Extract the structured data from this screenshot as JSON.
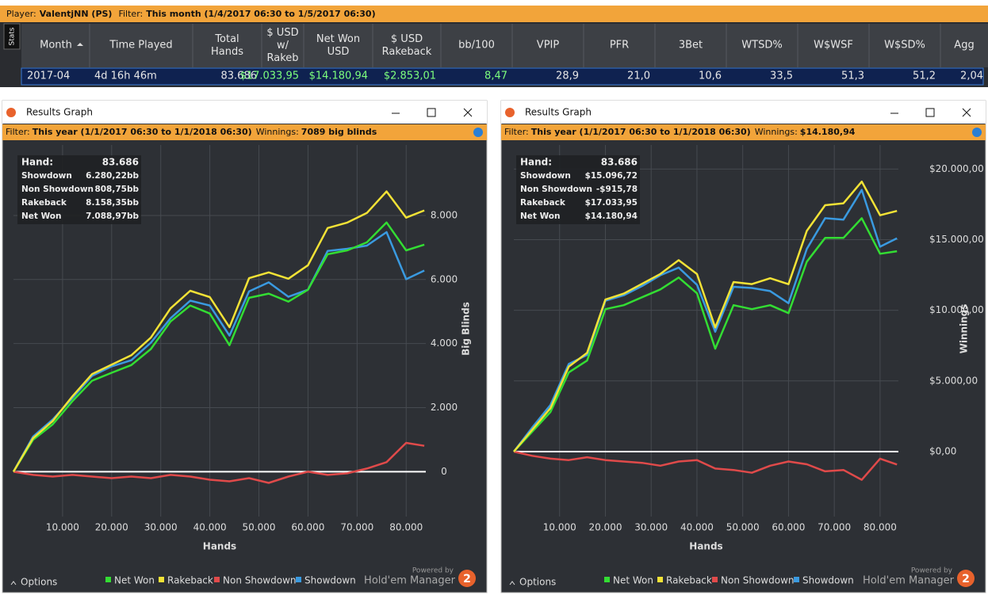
{
  "stats_bar": {
    "player_label": "Player:",
    "player": "ValentjNN (PS)",
    "filter_label": "Filter:",
    "filter": "This month (1/4/2017 06:30 to 1/5/2017 06:30)",
    "tab": "Stats"
  },
  "table": {
    "columns": [
      "Month",
      "Time Played",
      "Total Hands",
      "$ USD w/ Rakeb",
      "Net Won USD",
      "$ USD Rakeback",
      "bb/100",
      "VPIP",
      "PFR",
      "3Bet",
      "WTSD%",
      "W$WSF",
      "W$SD%",
      "Agg"
    ],
    "rows": [
      [
        "2017-04",
        "4d 16h 46m",
        "83.686",
        "$17.033,95",
        "$14.180,94",
        "$2.853,01",
        "8,47",
        "28,9",
        "21,0",
        "10,6",
        "33,5",
        "51,3",
        "51,2",
        "2,04"
      ]
    ]
  },
  "windows": [
    {
      "title": "Results Graph",
      "filter_label": "Filter:",
      "filter": "This year (1/1/2017 06:30 to 1/1/2018 06:30)",
      "winnings_label": "Winnings:",
      "winnings": "7089 big blinds",
      "summary": [
        [
          "Hand:",
          "83.686"
        ],
        [
          "Showdown",
          "6.280,22bb"
        ],
        [
          "Non Showdown",
          "808,75bb"
        ],
        [
          "Rakeback",
          "8.158,35bb"
        ],
        [
          "Net Won",
          "7.088,97bb"
        ]
      ],
      "options": "Options",
      "powered_by": "Powered by",
      "brand": "Hold'em Manager",
      "badge": "2"
    },
    {
      "title": "Results Graph",
      "filter_label": "Filter:",
      "filter": "This year (1/1/2017 06:30 to 1/1/2018 06:30)",
      "winnings_label": "Winnings:",
      "winnings": "$14.180,94",
      "summary": [
        [
          "Hand:",
          "83.686"
        ],
        [
          "Showdown",
          "$15.096,72"
        ],
        [
          "Non Showdown",
          "-$915,78"
        ],
        [
          "Rakeback",
          "$17.033,95"
        ],
        [
          "Net Won",
          "$14.180,94"
        ]
      ],
      "options": "Options",
      "powered_by": "Powered by",
      "brand": "Hold'em Manager",
      "badge": "2"
    }
  ],
  "chart_data": [
    {
      "type": "line",
      "xlabel": "Hands",
      "ylabel": "Big Blinds",
      "grid": true,
      "xlim": [
        0,
        84000
      ],
      "ylim": [
        -1400,
        10200
      ],
      "xticks": [
        {
          "value": 10000,
          "label": "10.000"
        },
        {
          "value": 20000,
          "label": "20.000"
        },
        {
          "value": 30000,
          "label": "30.000"
        },
        {
          "value": 40000,
          "label": "40.000"
        },
        {
          "value": 50000,
          "label": "50.000"
        },
        {
          "value": 60000,
          "label": "60.000"
        },
        {
          "value": 70000,
          "label": "70.000"
        },
        {
          "value": 80000,
          "label": "80.000"
        }
      ],
      "yticks": [
        0,
        {
          "value": 2000,
          "label": "2.000"
        },
        {
          "value": 4000,
          "label": "4.000"
        },
        {
          "value": 6000,
          "label": "6.000"
        },
        {
          "value": 8000,
          "label": "8.000"
        }
      ],
      "x": [
        0,
        4000,
        8000,
        12000,
        16000,
        20000,
        24000,
        28000,
        32000,
        36000,
        40000,
        44000,
        48000,
        52000,
        56000,
        60000,
        64000,
        68000,
        72000,
        76000,
        80000,
        83686
      ],
      "series": [
        {
          "name": "Net Won",
          "color": "#33dd33",
          "values": [
            0,
            1000,
            1480,
            2200,
            2840,
            3090,
            3330,
            3830,
            4690,
            5190,
            4940,
            3950,
            5430,
            5560,
            5310,
            5680,
            6790,
            6910,
            7160,
            7780,
            6910,
            7089
          ]
        },
        {
          "name": "Rakeback",
          "color": "#f2e236",
          "values": [
            0,
            1051,
            1582,
            2353,
            3044,
            3345,
            3636,
            4188,
            5099,
            5650,
            5451,
            4512,
            6043,
            6224,
            6025,
            6446,
            7607,
            7778,
            8079,
            8751,
            7932,
            8158
          ]
        },
        {
          "name": "Non Showdown",
          "color": "#e04a4a",
          "values": [
            0,
            -100,
            -150,
            -100,
            -150,
            -200,
            -150,
            -200,
            -100,
            -150,
            -250,
            -300,
            -200,
            -350,
            -150,
            0,
            -100,
            -50,
            100,
            300,
            900,
            809
          ]
        },
        {
          "name": "Showdown",
          "color": "#3a9ae0",
          "values": [
            0,
            1100,
            1630,
            2300,
            2990,
            3290,
            3480,
            4030,
            4790,
            5340,
            5190,
            4250,
            5630,
            5910,
            5460,
            5680,
            6890,
            6960,
            7060,
            7480,
            6010,
            6280
          ]
        }
      ]
    },
    {
      "type": "line",
      "xlabel": "Hands",
      "ylabel": "Winnings",
      "grid": true,
      "xlim": [
        0,
        84000
      ],
      "ylim": [
        -4600,
        21700
      ],
      "xticks": [
        {
          "value": 10000,
          "label": "10.000"
        },
        {
          "value": 20000,
          "label": "20.000"
        },
        {
          "value": 30000,
          "label": "30.000"
        },
        {
          "value": 40000,
          "label": "40.000"
        },
        {
          "value": 50000,
          "label": "50.000"
        },
        {
          "value": 60000,
          "label": "60.000"
        },
        {
          "value": 70000,
          "label": "70.000"
        },
        {
          "value": 80000,
          "label": "80.000"
        }
      ],
      "yticks": [
        {
          "value": 0,
          "label": "$0,00"
        },
        {
          "value": 5000,
          "label": "$5.000,00"
        },
        {
          "value": 10000,
          "label": "$10.000,00"
        },
        {
          "value": 15000,
          "label": "$15.000,00"
        },
        {
          "value": 20000,
          "label": "$20.000,00"
        }
      ],
      "x": [
        0,
        4000,
        8000,
        12000,
        16000,
        20000,
        24000,
        28000,
        32000,
        36000,
        40000,
        44000,
        48000,
        52000,
        56000,
        60000,
        64000,
        68000,
        72000,
        76000,
        80000,
        83686
      ],
      "series": [
        {
          "name": "Net Won",
          "color": "#33dd33",
          "values": [
            0,
            1400,
            2800,
            5600,
            6440,
            10080,
            10360,
            10920,
            11480,
            12320,
            11200,
            7280,
            10360,
            10080,
            10360,
            9800,
            13440,
            15120,
            15120,
            16520,
            14000,
            14181
          ]
        },
        {
          "name": "Rakeback",
          "color": "#f2e236",
          "values": [
            0,
            1536,
            3073,
            6009,
            6985,
            10762,
            11178,
            11875,
            12571,
            13547,
            12564,
            8780,
            11996,
            11853,
            12269,
            11845,
            15622,
            17438,
            17574,
            19111,
            16727,
            17034
          ]
        },
        {
          "name": "Non Showdown",
          "color": "#e04a4a",
          "values": [
            0,
            -300,
            -500,
            -600,
            -400,
            -600,
            -700,
            -800,
            -1000,
            -700,
            -600,
            -1200,
            -1300,
            -1500,
            -1000,
            -700,
            -900,
            -1400,
            -1300,
            -2000,
            -500,
            -916
          ]
        },
        {
          "name": "Showdown",
          "color": "#3a9ae0",
          "values": [
            0,
            1700,
            3300,
            6200,
            6840,
            10680,
            11060,
            11720,
            12480,
            13020,
            11800,
            8480,
            11660,
            11580,
            11360,
            10500,
            14340,
            16520,
            16420,
            18520,
            14500,
            15097
          ]
        }
      ]
    }
  ]
}
